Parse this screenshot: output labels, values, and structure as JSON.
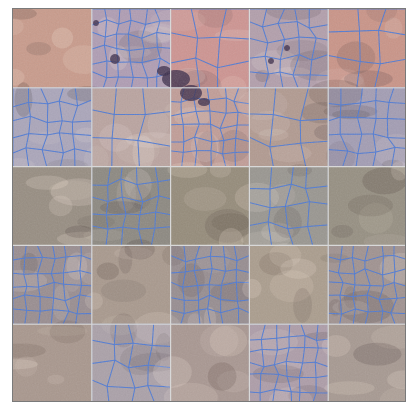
{
  "image": {
    "subject": "satellite-terrain-segmentation",
    "grid": {
      "rows": 5,
      "cols": 5
    },
    "colors": {
      "frame_border": "#7a7a7a",
      "segment_line": "#4a78d6",
      "tile_boundary": "#d8d8d8",
      "dark_blob": "#3a2a48"
    },
    "tiles": [
      [
        "#c99a8a",
        "#b6a0b0",
        "#d8968a",
        "#b9a2a8",
        "#d4967e"
      ],
      [
        "#b0aab8",
        "#c2a89a",
        "#caa090",
        "#b89c88",
        "#a8a0b0"
      ],
      [
        "#968c80",
        "#8e8876",
        "#948a78",
        "#9c9888",
        "#958e80"
      ],
      [
        "#9c8e88",
        "#a8988c",
        "#9a8e88",
        "#aa9c8c",
        "#a49488"
      ],
      [
        "#a8968c",
        "#b0a4a4",
        "#a89690",
        "#b4a0a4",
        "#a69890"
      ]
    ],
    "cell_density": [
      [
        0,
        4,
        1,
        3,
        1
      ],
      [
        3,
        1,
        4,
        1,
        3
      ],
      [
        0,
        3,
        0,
        2,
        0
      ],
      [
        4,
        0,
        4,
        0,
        4
      ],
      [
        0,
        2,
        0,
        4,
        0
      ]
    ]
  }
}
